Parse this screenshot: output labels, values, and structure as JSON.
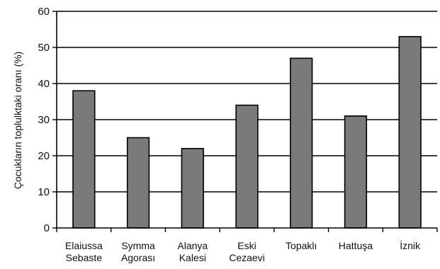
{
  "chart_data": {
    "type": "bar",
    "title": "",
    "xlabel": "",
    "ylabel": "Çocukların toplulktaki oranı (%)",
    "ylim": [
      0,
      60
    ],
    "yticks": [
      0,
      10,
      20,
      30,
      40,
      50,
      60
    ],
    "grid": true,
    "categories": [
      [
        "Elaiussa",
        "Sebaste"
      ],
      [
        "Symma",
        "Agorası"
      ],
      [
        "Alanya",
        "Kalesi"
      ],
      [
        "Eski",
        "Cezaevi"
      ],
      [
        "Topaklı"
      ],
      [
        "Hattuşa"
      ],
      [
        "İznik"
      ]
    ],
    "values": [
      38,
      25,
      22,
      34,
      47,
      31,
      53
    ],
    "bar_color": "#7a7a7a"
  }
}
